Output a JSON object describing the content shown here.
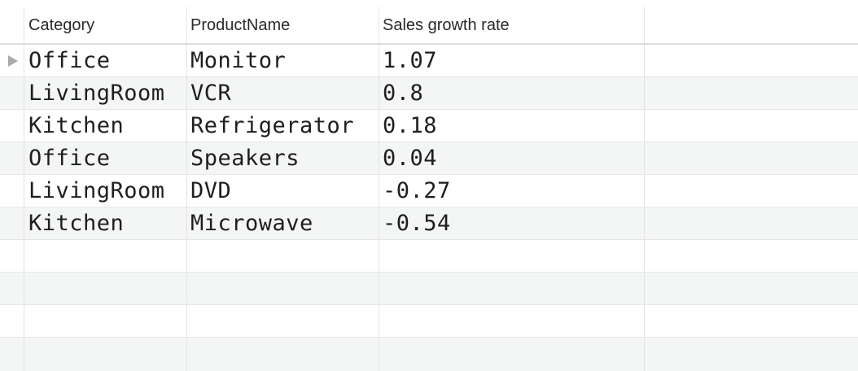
{
  "table": {
    "columns": [
      "Category",
      "ProductName",
      "Sales growth rate"
    ],
    "rows": [
      {
        "category": "Office",
        "product": "Monitor",
        "rate": "1.07"
      },
      {
        "category": "LivingRoom",
        "product": "VCR",
        "rate": "0.8"
      },
      {
        "category": "Kitchen",
        "product": "Refrigerator",
        "rate": "0.18"
      },
      {
        "category": "Office",
        "product": "Speakers",
        "rate": "0.04"
      },
      {
        "category": "LivingRoom",
        "product": "DVD",
        "rate": "-0.27"
      },
      {
        "category": "Kitchen",
        "product": "Microwave",
        "rate": "-0.54"
      }
    ],
    "selected_row": 0,
    "row_indicator_icon": "triangle-right-icon"
  }
}
